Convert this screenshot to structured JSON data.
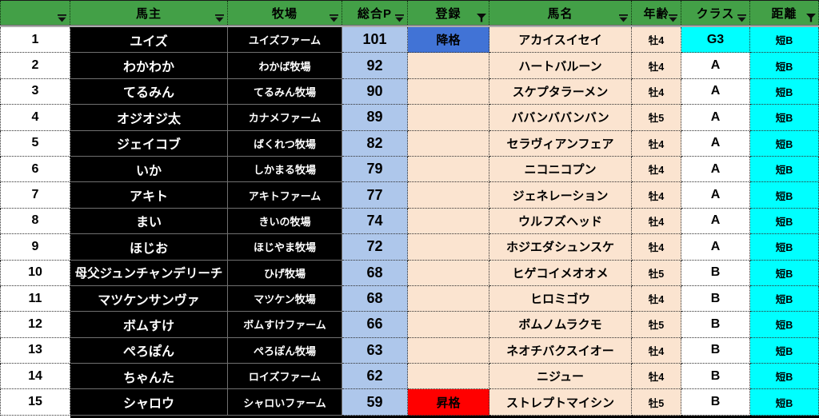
{
  "colors": {
    "header_green": "#43a047",
    "accent_blue": "#4173d6",
    "light_blue": "#aec7eb",
    "peach": "#fbe4d0",
    "cyan": "#00ffff",
    "red": "#ff0000"
  },
  "table": {
    "headers": [
      {
        "label": "",
        "filter": "dropdown"
      },
      {
        "label": "馬主",
        "filter": "dropdown"
      },
      {
        "label": "牧場",
        "filter": "dropdown"
      },
      {
        "label": "総合P",
        "filter": "dropdown"
      },
      {
        "label": "登録",
        "filter": "funnel"
      },
      {
        "label": "馬名",
        "filter": "dropdown"
      },
      {
        "label": "年齢",
        "filter": "dropdown"
      },
      {
        "label": "クラス",
        "filter": "dropdown"
      },
      {
        "label": "距離",
        "filter": "funnel"
      }
    ],
    "rows": [
      {
        "num": "1",
        "owner": "ユイズ",
        "farm": "ユイズファーム",
        "points": "101",
        "reg": "降格",
        "reg_type": "demote",
        "name": "アカイスイセイ",
        "age": "牡4",
        "class": "G3",
        "class_highlight": true,
        "dist": "短B"
      },
      {
        "num": "2",
        "owner": "わかわか",
        "farm": "わかば牧場",
        "points": "92",
        "reg": "",
        "reg_type": "none",
        "name": "ハートバルーン",
        "age": "牡4",
        "class": "A",
        "class_highlight": false,
        "dist": "短B"
      },
      {
        "num": "3",
        "owner": "てるみん",
        "farm": "てるみん牧場",
        "points": "90",
        "reg": "",
        "reg_type": "none",
        "name": "スケプタラーメン",
        "age": "牡4",
        "class": "A",
        "class_highlight": false,
        "dist": "短B"
      },
      {
        "num": "4",
        "owner": "オジオジ太",
        "farm": "カナメファーム",
        "points": "89",
        "reg": "",
        "reg_type": "none",
        "name": "ババンババンバン",
        "age": "牡5",
        "class": "A",
        "class_highlight": false,
        "dist": "短B"
      },
      {
        "num": "5",
        "owner": "ジェイコブ",
        "farm": "ばくれつ牧場",
        "points": "82",
        "reg": "",
        "reg_type": "none",
        "name": "セラヴィアンフェア",
        "age": "牡4",
        "class": "A",
        "class_highlight": false,
        "dist": "短B"
      },
      {
        "num": "6",
        "owner": "いか",
        "farm": "しかまる牧場",
        "points": "79",
        "reg": "",
        "reg_type": "none",
        "name": "ニコニコプン",
        "age": "牡4",
        "class": "A",
        "class_highlight": false,
        "dist": "短B"
      },
      {
        "num": "7",
        "owner": "アキト",
        "farm": "アキトファーム",
        "points": "77",
        "reg": "",
        "reg_type": "none",
        "name": "ジェネレーション",
        "age": "牡4",
        "class": "A",
        "class_highlight": false,
        "dist": "短B"
      },
      {
        "num": "8",
        "owner": "まい",
        "farm": "きいの牧場",
        "points": "74",
        "reg": "",
        "reg_type": "none",
        "name": "ウルフズヘッド",
        "age": "牡4",
        "class": "A",
        "class_highlight": false,
        "dist": "短B"
      },
      {
        "num": "9",
        "owner": "ほじお",
        "farm": "ほじやま牧場",
        "points": "72",
        "reg": "",
        "reg_type": "none",
        "name": "ホジエダシュンスケ",
        "age": "牡4",
        "class": "A",
        "class_highlight": false,
        "dist": "短B"
      },
      {
        "num": "10",
        "owner": "母父ジュンチャンデリーチ",
        "farm": "ひげ牧場",
        "points": "68",
        "reg": "",
        "reg_type": "none",
        "name": "ヒゲコイメオオメ",
        "age": "牡5",
        "class": "B",
        "class_highlight": false,
        "dist": "短B"
      },
      {
        "num": "11",
        "owner": "マツケンサンヴァ",
        "farm": "マツケン牧場",
        "points": "68",
        "reg": "",
        "reg_type": "none",
        "name": "ヒロミゴウ",
        "age": "牡4",
        "class": "B",
        "class_highlight": false,
        "dist": "短B"
      },
      {
        "num": "12",
        "owner": "ボムすけ",
        "farm": "ボムすけファーム",
        "points": "66",
        "reg": "",
        "reg_type": "none",
        "name": "ボムノムラクモ",
        "age": "牡5",
        "class": "B",
        "class_highlight": false,
        "dist": "短B"
      },
      {
        "num": "13",
        "owner": "ぺろぽん",
        "farm": "ぺろぽん牧場",
        "points": "63",
        "reg": "",
        "reg_type": "none",
        "name": "ネオチバクスイオー",
        "age": "牡4",
        "class": "B",
        "class_highlight": false,
        "dist": "短B"
      },
      {
        "num": "14",
        "owner": "ちゃんた",
        "farm": "ロイズファーム",
        "points": "62",
        "reg": "",
        "reg_type": "none",
        "name": "ニジュー",
        "age": "牡4",
        "class": "B",
        "class_highlight": false,
        "dist": "短B"
      },
      {
        "num": "15",
        "owner": "シャロウ",
        "farm": "シャロいファーム",
        "points": "59",
        "reg": "昇格",
        "reg_type": "promote",
        "name": "ストレプトマイシン",
        "age": "牡5",
        "class": "B",
        "class_highlight": false,
        "dist": "短B"
      }
    ]
  }
}
